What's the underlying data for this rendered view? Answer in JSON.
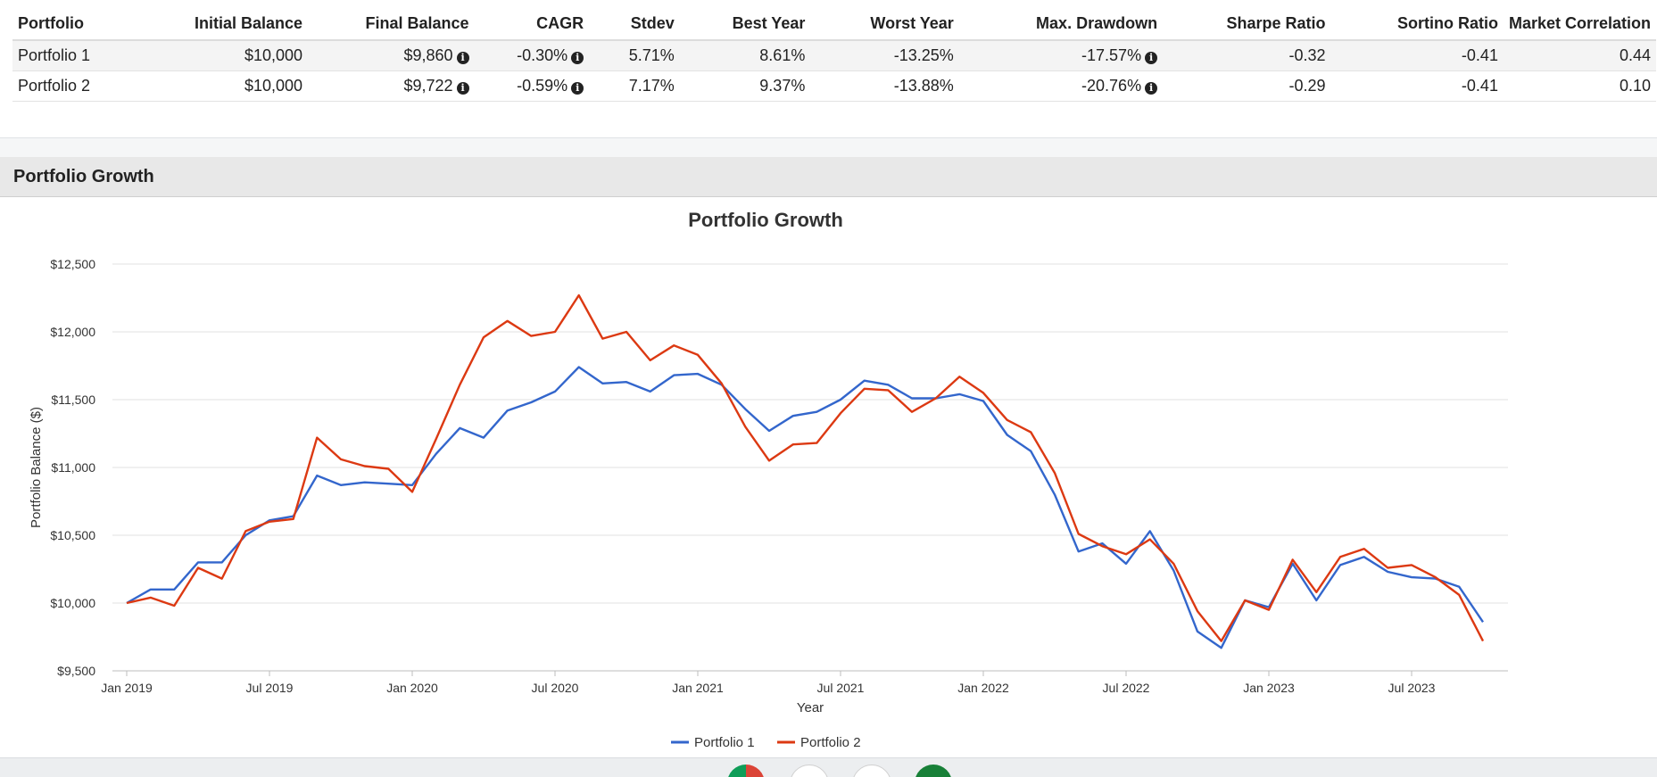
{
  "summary": {
    "headers": [
      "Portfolio",
      "Initial Balance",
      "Final Balance",
      "CAGR",
      "Stdev",
      "Best Year",
      "Worst Year",
      "Max. Drawdown",
      "Sharpe Ratio",
      "Sortino Ratio",
      "Market Correlation"
    ],
    "rows": [
      {
        "portfolio": "Portfolio 1",
        "initial": "$10,000",
        "final": "$9,860",
        "cagr": "-0.30%",
        "stdev": "5.71%",
        "best": "8.61%",
        "worst": "-13.25%",
        "drawdown": "-17.57%",
        "sharpe": "-0.32",
        "sortino": "-0.41",
        "correlation": "0.44"
      },
      {
        "portfolio": "Portfolio 2",
        "initial": "$10,000",
        "final": "$9,722",
        "cagr": "-0.59%",
        "stdev": "7.17%",
        "best": "9.37%",
        "worst": "-13.88%",
        "drawdown": "-20.76%",
        "sharpe": "-0.29",
        "sortino": "-0.41",
        "correlation": "0.10"
      }
    ]
  },
  "section": {
    "title": "Portfolio Growth"
  },
  "taskbar": {
    "icons": [
      "chrome-icon",
      "docs-app-icon",
      "drive-app-icon",
      "sheets-app-icon"
    ]
  },
  "chart_data": {
    "type": "line",
    "title": "Portfolio Growth",
    "xlabel": "Year",
    "ylabel": "Portfolio Balance ($)",
    "ylim": [
      9500,
      12500
    ],
    "y_ticks": [
      "$9,500",
      "$10,000",
      "$10,500",
      "$11,000",
      "$11,500",
      "$12,000",
      "$12,500"
    ],
    "y_tick_values": [
      9500,
      10000,
      10500,
      11000,
      11500,
      12000,
      12500
    ],
    "x_ticks": [
      "Jan 2019",
      "Jul 2019",
      "Jan 2020",
      "Jul 2020",
      "Jan 2021",
      "Jul 2021",
      "Jan 2022",
      "Jul 2022",
      "Jan 2023",
      "Jul 2023"
    ],
    "x_tick_months": [
      "2019-01",
      "2019-07",
      "2020-01",
      "2020-07",
      "2021-01",
      "2021-07",
      "2022-01",
      "2022-07",
      "2023-01",
      "2023-07"
    ],
    "x": [
      "2019-01",
      "2019-02",
      "2019-03",
      "2019-04",
      "2019-05",
      "2019-06",
      "2019-07",
      "2019-08",
      "2019-09",
      "2019-10",
      "2019-11",
      "2019-12",
      "2020-01",
      "2020-02",
      "2020-03",
      "2020-04",
      "2020-05",
      "2020-06",
      "2020-07",
      "2020-08",
      "2020-09",
      "2020-10",
      "2020-11",
      "2020-12",
      "2021-01",
      "2021-02",
      "2021-03",
      "2021-04",
      "2021-05",
      "2021-06",
      "2021-07",
      "2021-08",
      "2021-09",
      "2021-10",
      "2021-11",
      "2021-12",
      "2022-01",
      "2022-02",
      "2022-03",
      "2022-04",
      "2022-05",
      "2022-06",
      "2022-07",
      "2022-08",
      "2022-09",
      "2022-10",
      "2022-11",
      "2022-12",
      "2023-01",
      "2023-02",
      "2023-03",
      "2023-04",
      "2023-05",
      "2023-06",
      "2023-07",
      "2023-08",
      "2023-09",
      "2023-10"
    ],
    "legend_position": "bottom",
    "grid": true,
    "series": [
      {
        "name": "Portfolio 1",
        "color": "#3366cc",
        "values": [
          10000,
          10100,
          10100,
          10300,
          10300,
          10500,
          10610,
          10640,
          10940,
          10870,
          10890,
          10880,
          10870,
          11100,
          11290,
          11220,
          11420,
          11480,
          11560,
          11740,
          11620,
          11630,
          11560,
          11680,
          11690,
          11610,
          11430,
          11270,
          11380,
          11410,
          11500,
          11640,
          11610,
          11510,
          11510,
          11540,
          11490,
          11240,
          11120,
          10800,
          10380,
          10440,
          10290,
          10530,
          10240,
          9790,
          9670,
          10020,
          9970,
          10290,
          10020,
          10280,
          10340,
          10230,
          10190,
          10180,
          10120,
          9860
        ]
      },
      {
        "name": "Portfolio 2",
        "color": "#dc3912",
        "values": [
          10000,
          10040,
          9980,
          10260,
          10180,
          10530,
          10600,
          10620,
          11220,
          11060,
          11010,
          10990,
          10820,
          11210,
          11610,
          11960,
          12080,
          11970,
          12000,
          12270,
          11950,
          12000,
          11790,
          11900,
          11830,
          11620,
          11300,
          11050,
          11170,
          11180,
          11400,
          11580,
          11570,
          11410,
          11510,
          11670,
          11550,
          11350,
          11260,
          10960,
          10510,
          10420,
          10360,
          10470,
          10290,
          9940,
          9720,
          10020,
          9950,
          10320,
          10080,
          10340,
          10400,
          10260,
          10280,
          10190,
          10060,
          9720
        ]
      }
    ]
  }
}
